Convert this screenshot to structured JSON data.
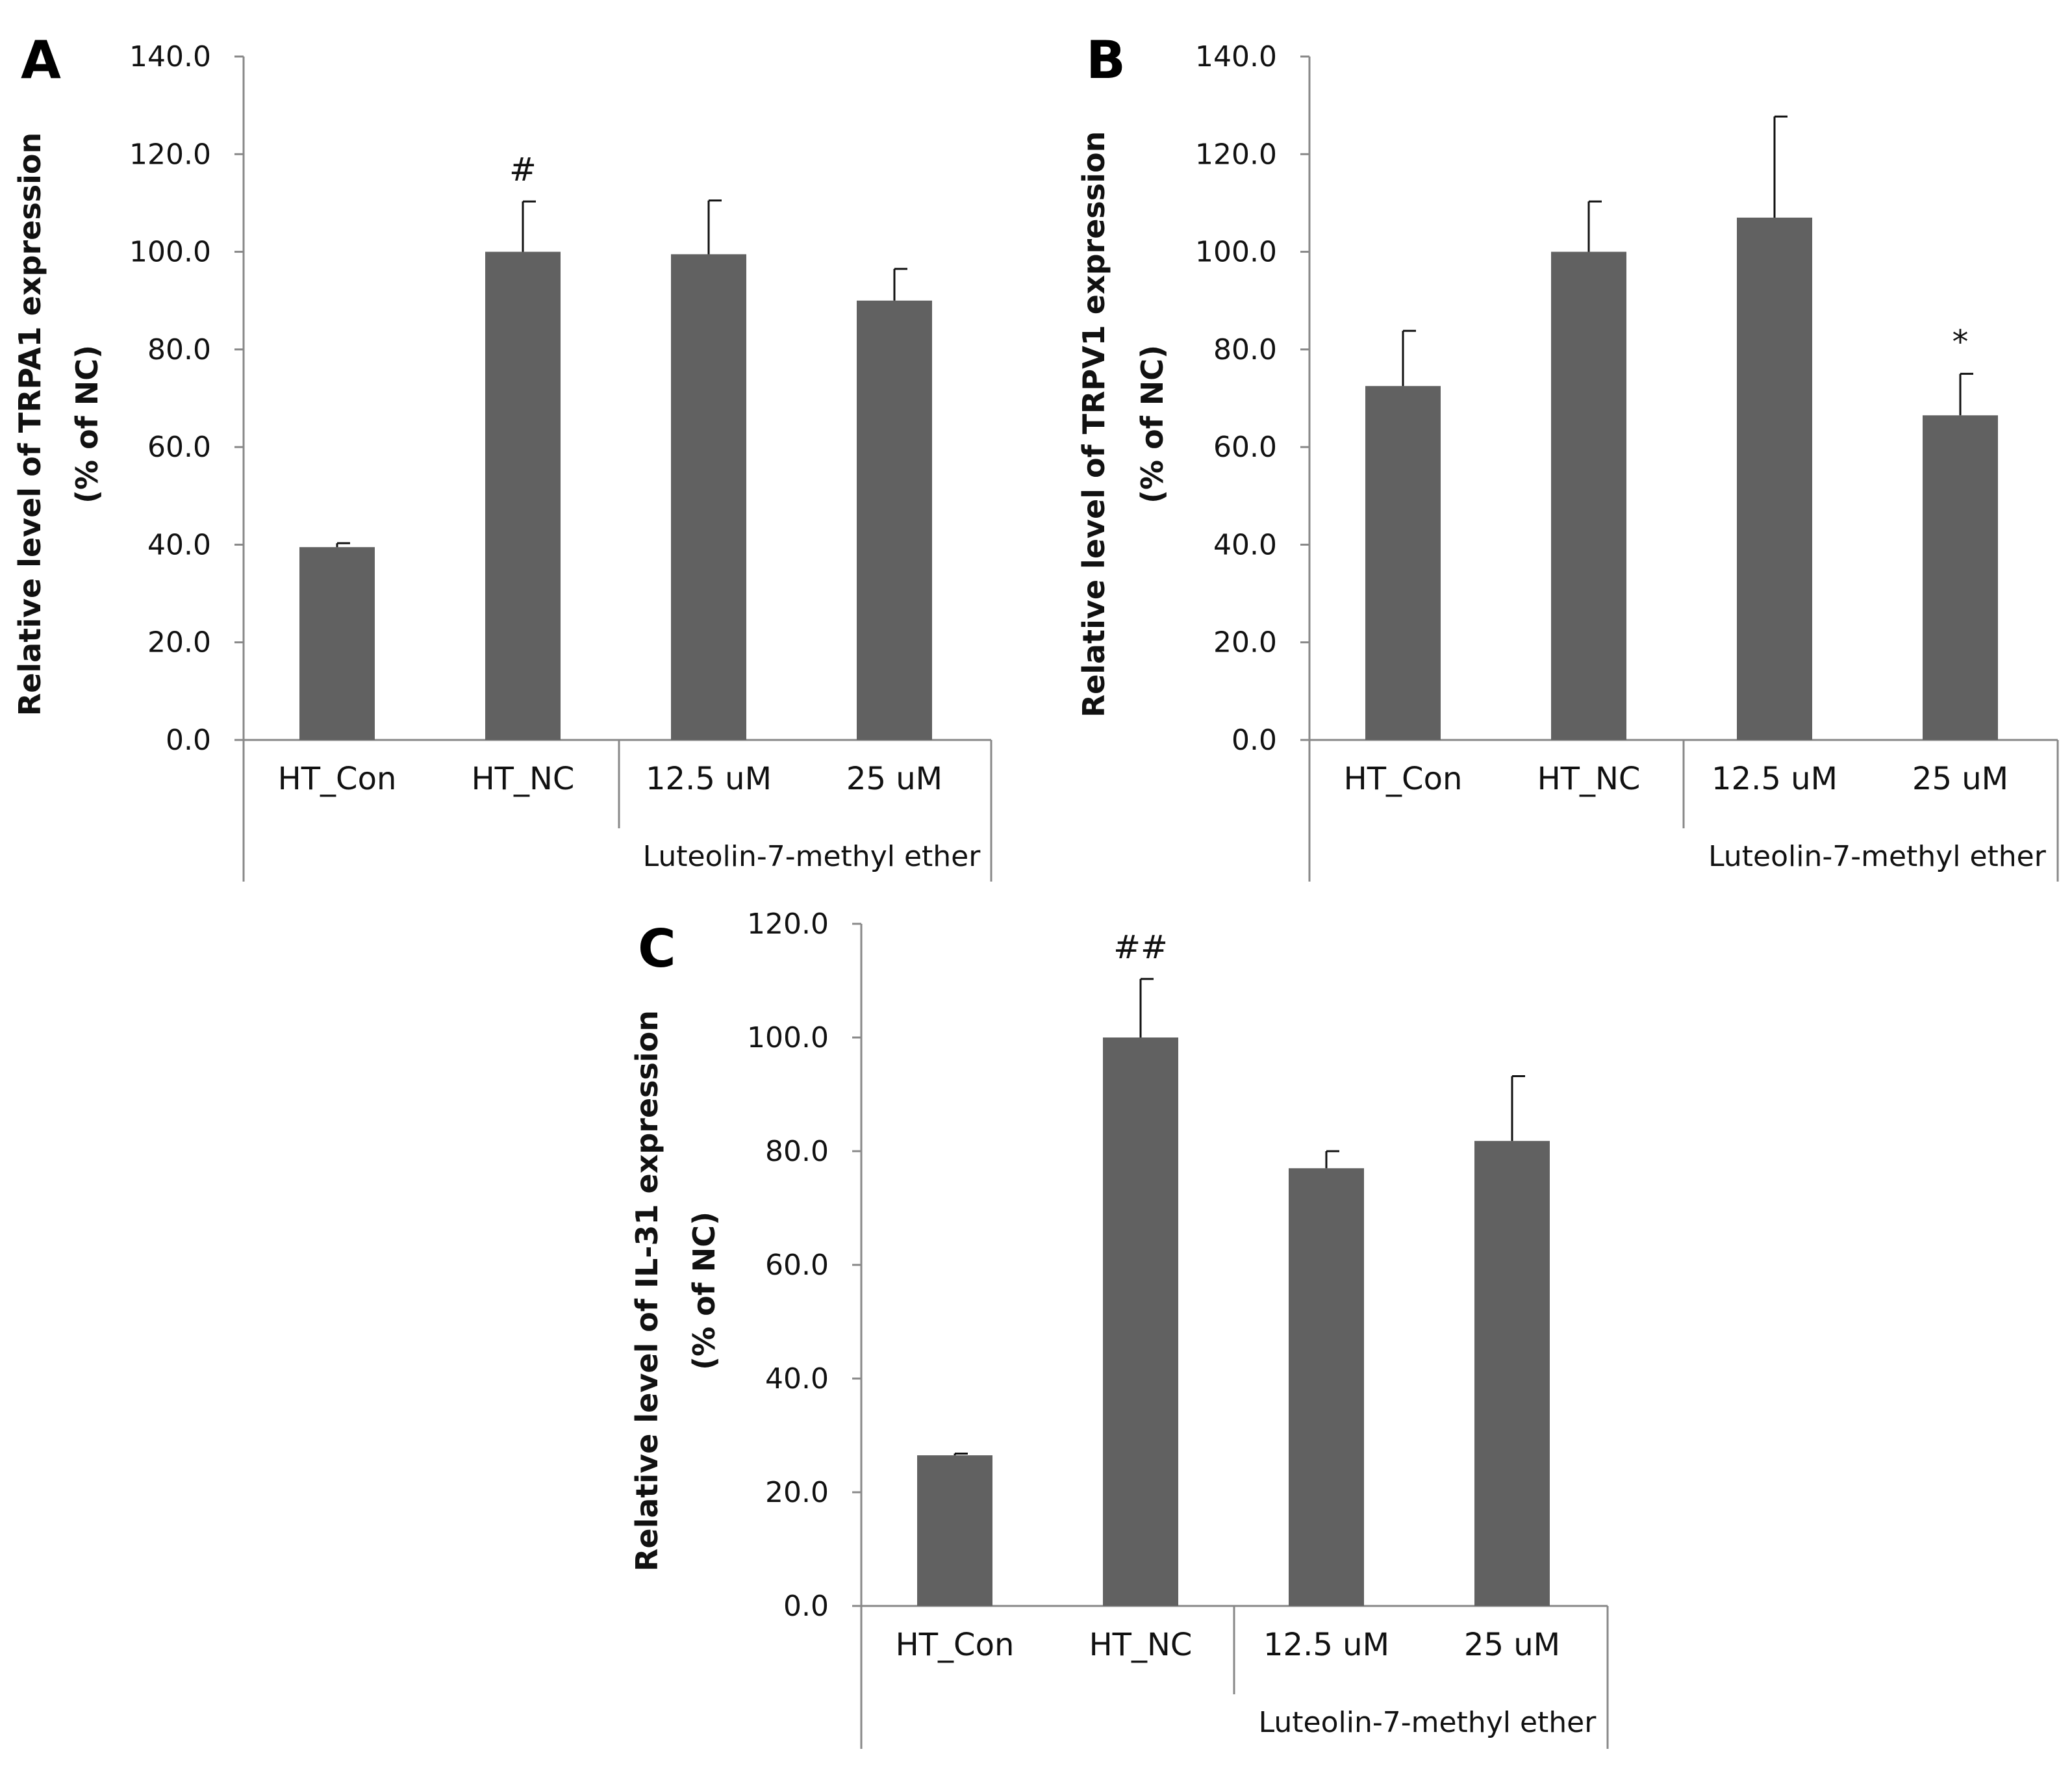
{
  "chart_data": [
    {
      "type": "bar",
      "panel": "A",
      "ylabel": "Relative level of TRPA1 expression",
      "ylabel2": "(% of NC)",
      "ylim": [
        0,
        140
      ],
      "yticks": [
        "0.0",
        "20.0",
        "40.0",
        "60.0",
        "80.0",
        "100.0",
        "120.0",
        "140.0"
      ],
      "categories": [
        "HT_Con",
        "HT_NC",
        "12.5 uM",
        "25 uM"
      ],
      "values": [
        39.5,
        100.0,
        99.5,
        90.0
      ],
      "errors": [
        0.8,
        10.3,
        11.0,
        6.5
      ],
      "annotations": [
        "",
        "#",
        "",
        ""
      ],
      "group_label": "Luteolin-7-methyl ether"
    },
    {
      "type": "bar",
      "panel": "B",
      "ylabel": "Relative level of TRPV1 expression",
      "ylabel2": "(% of NC)",
      "ylim": [
        0,
        140
      ],
      "yticks": [
        "0.0",
        "20.0",
        "40.0",
        "60.0",
        "80.0",
        "100.0",
        "120.0",
        "140.0"
      ],
      "categories": [
        "HT_Con",
        "HT_NC",
        "12.5 uM",
        "25 uM"
      ],
      "values": [
        72.5,
        100.0,
        107.0,
        66.5
      ],
      "errors": [
        11.3,
        10.3,
        20.7,
        8.5
      ],
      "annotations": [
        "",
        "",
        "",
        "*"
      ],
      "group_label": "Luteolin-7-methyl ether"
    },
    {
      "type": "bar",
      "panel": "C",
      "ylabel": "Relative level of IL-31 expression",
      "ylabel2": "(% of NC)",
      "ylim": [
        0,
        120
      ],
      "yticks": [
        "0.0",
        "20.0",
        "40.0",
        "60.0",
        "80.0",
        "100.0",
        "120.0"
      ],
      "categories": [
        "HT_Con",
        "HT_NC",
        "12.5 uM",
        "25 uM"
      ],
      "values": [
        26.5,
        100.0,
        77.0,
        81.8
      ],
      "errors": [
        0.3,
        10.3,
        3.0,
        11.4
      ],
      "annotations": [
        "",
        "##",
        "",
        ""
      ],
      "group_label": "Luteolin-7-methyl ether"
    }
  ]
}
